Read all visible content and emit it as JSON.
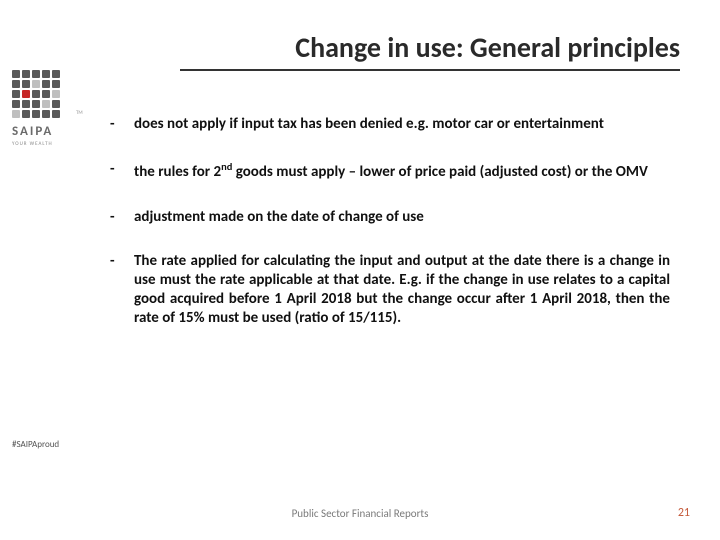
{
  "title": "Change in use: General principles",
  "logo": {
    "name": "SAIPA",
    "tagline": "YOUR WEALTH",
    "tm": "TM",
    "grid_colors": [
      "#5a5a5a",
      "#5a5a5a",
      "#5a5a5a",
      "#5a5a5a",
      "#5a5a5a",
      "#5a5a5a",
      "#5a5a5a",
      "#bfbfbf",
      "#5a5a5a",
      "#5a5a5a",
      "#5a5a5a",
      "#c62828",
      "#5a5a5a",
      "#5a5a5a",
      "#bfbfbf",
      "#5a5a5a",
      "#5a5a5a",
      "#5a5a5a",
      "#bfbfbf",
      "#5a5a5a",
      "#bfbfbf",
      "#5a5a5a",
      "#5a5a5a",
      "#5a5a5a",
      "#5a5a5a"
    ]
  },
  "hashtag": "#SAIPAproud",
  "bullets": [
    {
      "text": "does not apply if input tax has been denied e.g. motor car or entertainment",
      "justify": false
    },
    {
      "text": "the rules for 2<sup>nd</sup> goods must apply – lower of price paid (adjusted cost) or the OMV",
      "justify": true
    },
    {
      "text": "adjustment made on the date of change of use",
      "justify": false
    },
    {
      "text": "The rate applied for calculating the input and output at the date there is a change in use must the rate applicable at that date.  E.g. if the change in use relates to a capital good acquired before 1 April 2018 but the change occur after 1 April 2018, then the rate of 15% must be used (ratio of 15/115).",
      "justify": true
    }
  ],
  "footer": {
    "center": "Public Sector Financial Reports",
    "page": "21"
  },
  "colors": {
    "title_text": "#2a2a2a",
    "title_border": "#333333",
    "body_text": "#111111",
    "footer_text": "#7a7a7a",
    "page_number": "#c55a3b",
    "background": "#ffffff"
  },
  "typography": {
    "title_fontsize": 28,
    "title_weight": 700,
    "body_fontsize": 15,
    "body_weight": 700,
    "footer_fontsize": 11
  }
}
